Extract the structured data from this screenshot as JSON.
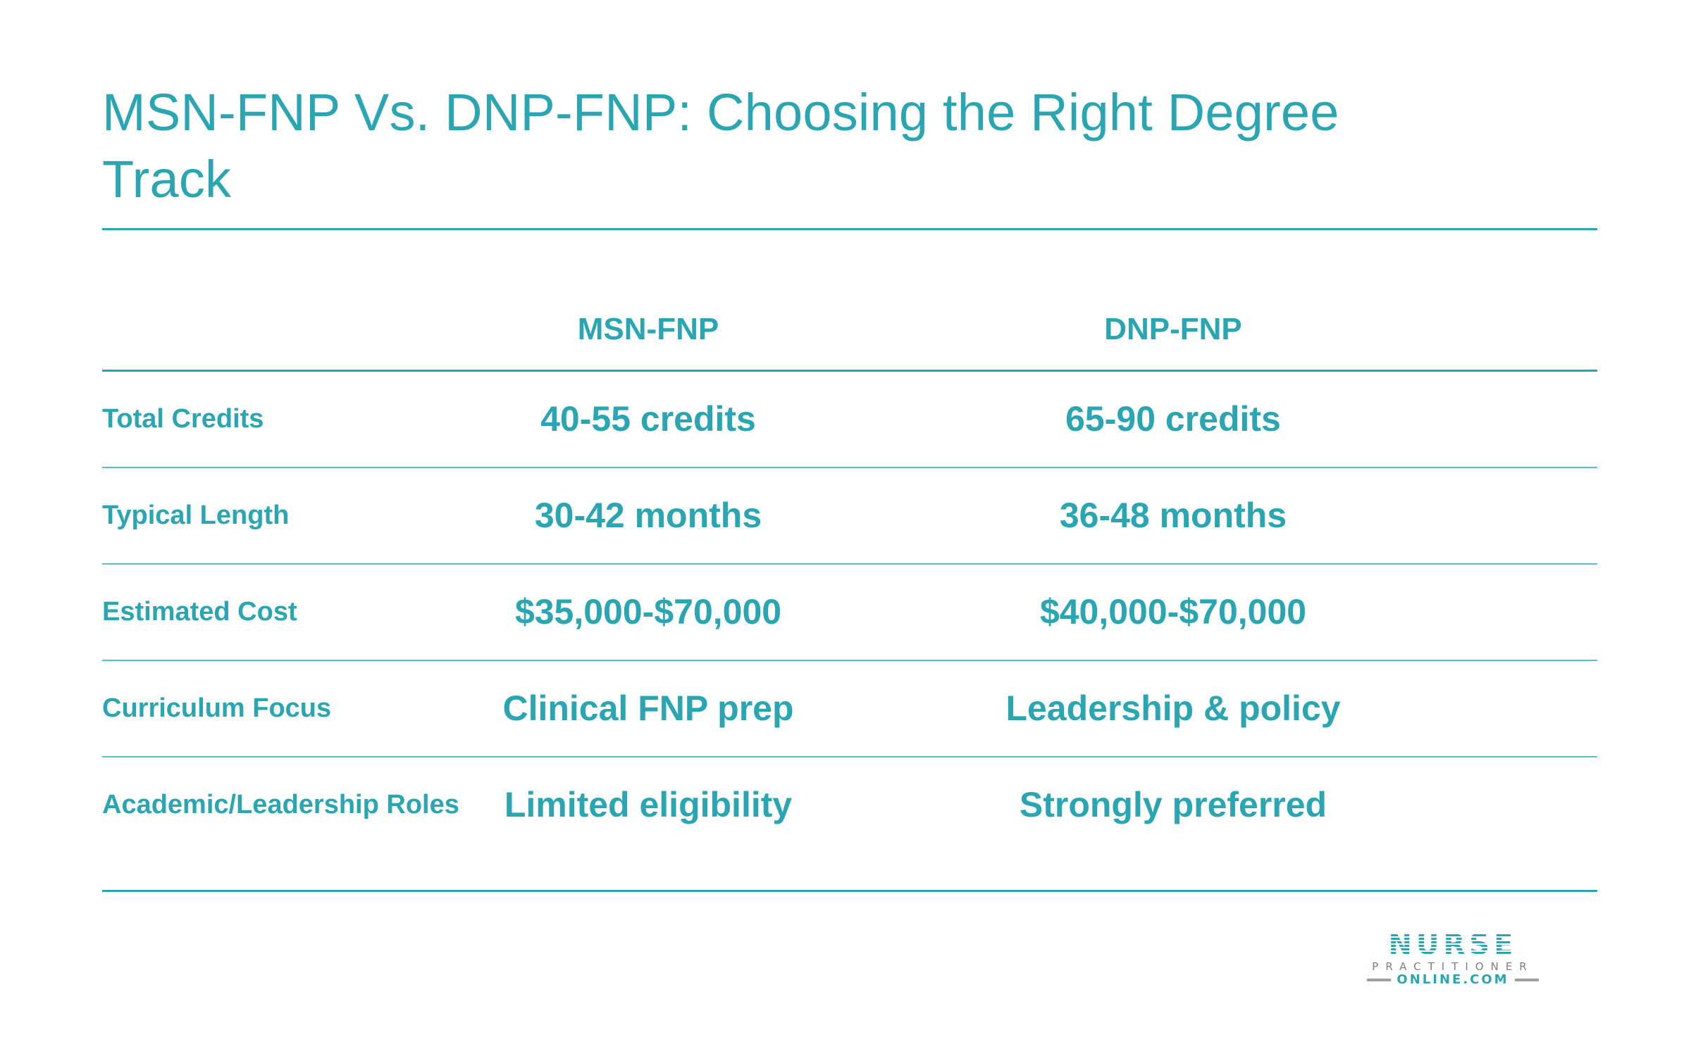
{
  "title": "MSN-FNP Vs. DNP-FNP: Choosing the Right Degree Track",
  "table": {
    "columns": [
      "MSN-FNP",
      "DNP-FNP"
    ],
    "rows": [
      {
        "label": "Total Credits",
        "msn": "40-55 credits",
        "dnp": "65-90 credits"
      },
      {
        "label": "Typical Length",
        "msn": "30-42 months",
        "dnp": "36-48 months"
      },
      {
        "label": "Estimated Cost",
        "msn": "$35,000-$70,000",
        "dnp": "$40,000-$70,000"
      },
      {
        "label": "Curriculum Focus",
        "msn": "Clinical FNP prep",
        "dnp": "Leadership & policy"
      },
      {
        "label": "Academic/Leadership Roles",
        "msn": "Limited eligibility",
        "dnp": "Strongly preferred"
      }
    ]
  },
  "logo": {
    "word": "NURSE",
    "sub": "PRACTITIONER",
    "site": "ONLINE.COM"
  },
  "colors": {
    "accent": "#2aa6b3",
    "rule_light": "#5bbfc8",
    "logo_gray": "#7a7f83"
  }
}
